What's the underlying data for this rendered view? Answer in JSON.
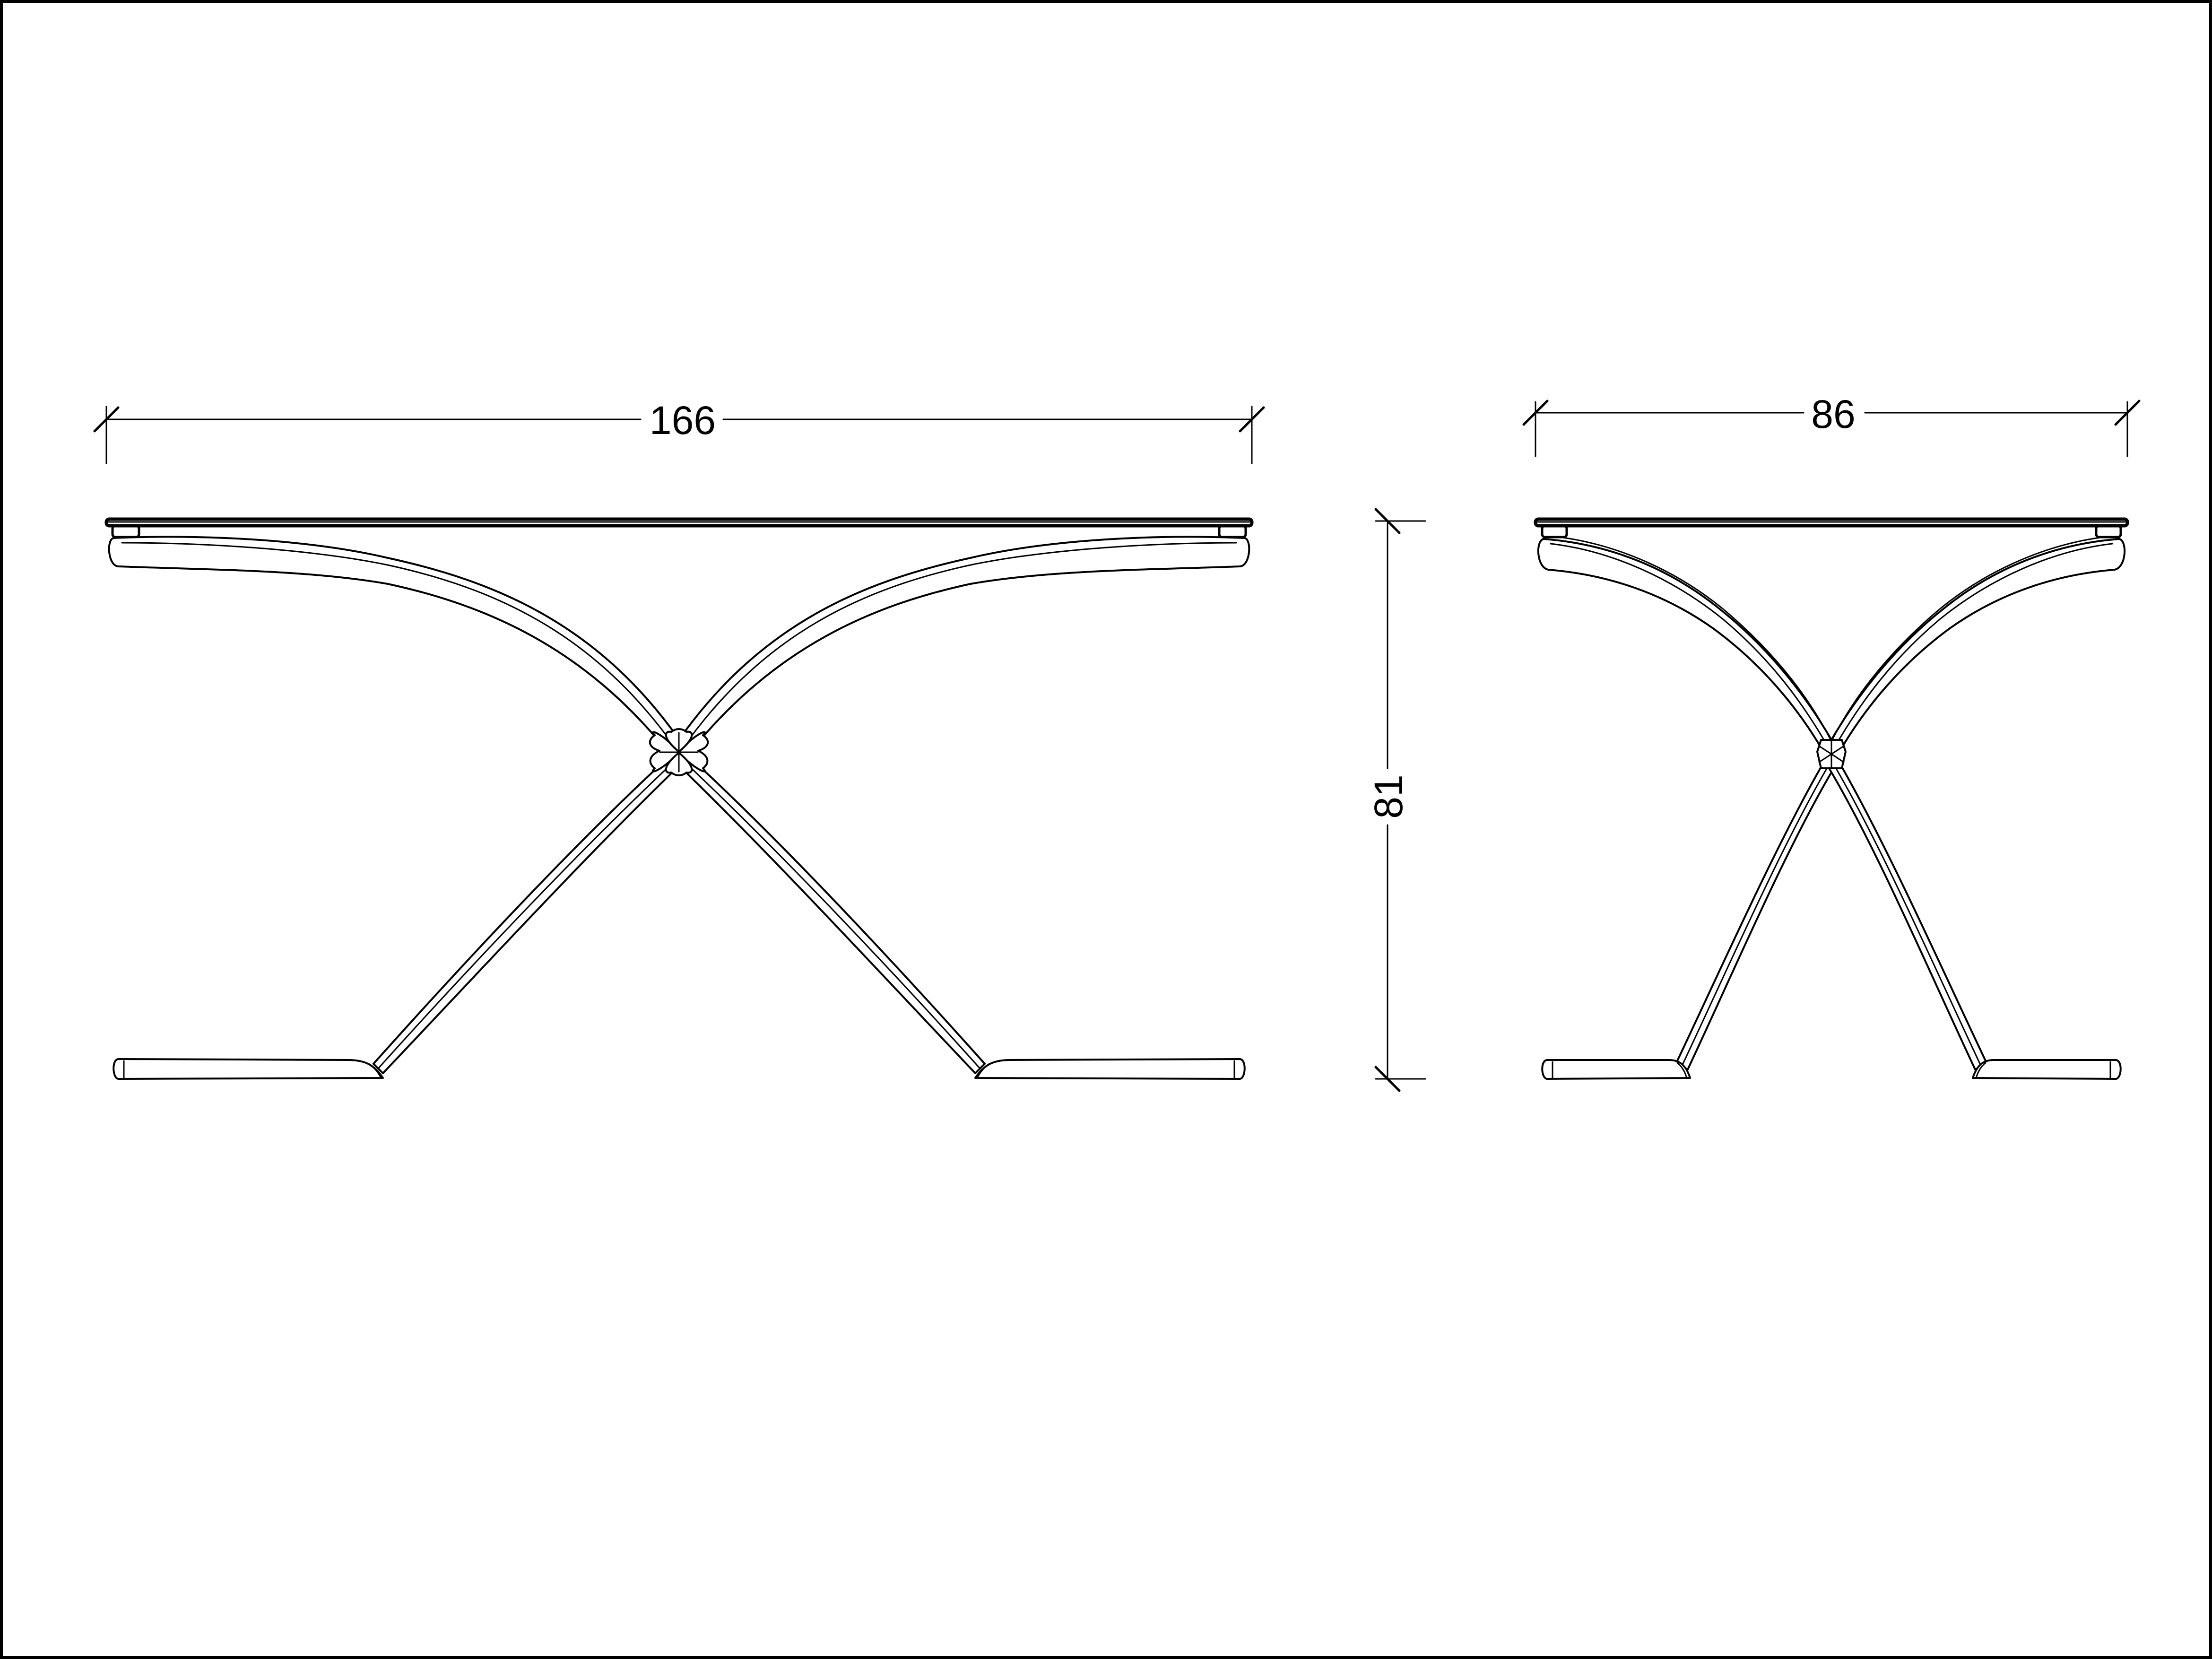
{
  "dimensions": {
    "front_width": "166",
    "side_depth": "86",
    "height": "81"
  },
  "colors": {
    "line": "#000000",
    "background": "#ffffff"
  }
}
